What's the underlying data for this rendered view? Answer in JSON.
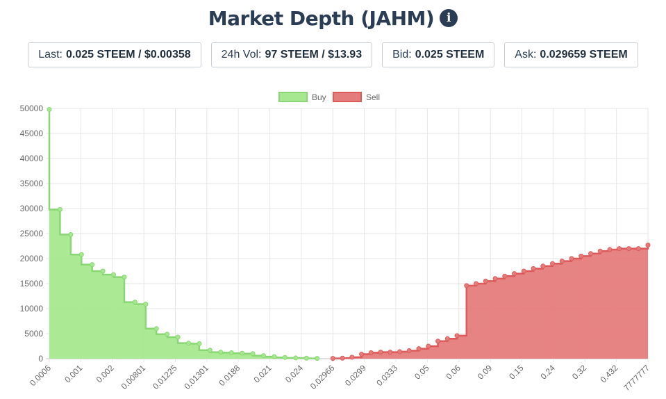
{
  "header": {
    "title": "Market Depth (JAHM)",
    "info_icon": "info-circle-icon"
  },
  "stats": [
    {
      "label": "Last:",
      "value": "0.025 STEEM / $0.00358"
    },
    {
      "label": "24h Vol:",
      "value": "97 STEEM / $13.93"
    },
    {
      "label": "Bid:",
      "value": "0.025 STEEM"
    },
    {
      "label": "Ask:",
      "value": "0.029659 STEEM"
    }
  ],
  "chart_data": {
    "type": "area",
    "title": "",
    "xlabel": "",
    "ylabel": "",
    "ylim": [
      0,
      50000
    ],
    "y_ticks": [
      0,
      5000,
      10000,
      15000,
      20000,
      25000,
      30000,
      35000,
      40000,
      45000,
      50000
    ],
    "x_tick_labels": [
      "0.0006",
      "0.001",
      "0.002",
      "0.00801",
      "0.01225",
      "0.01301",
      "0.0188",
      "0.021",
      "0.024",
      "0.02966",
      "0.0299",
      "0.0333",
      "0.05",
      "0.06",
      "0.09",
      "0.15",
      "0.24",
      "0.32",
      "0.432",
      "7777777"
    ],
    "grid": true,
    "legend_position": "top",
    "series": [
      {
        "name": "Buy",
        "color": "#a6e88f",
        "line_color": "#8ad675",
        "values": [
          49800,
          29800,
          24800,
          20800,
          18800,
          17500,
          16800,
          16300,
          11300,
          10900,
          6000,
          4900,
          4300,
          3100,
          3000,
          1700,
          1300,
          1200,
          1100,
          1000,
          600,
          400,
          250,
          150,
          100,
          50
        ]
      },
      {
        "name": "Sell",
        "color": "#e57c7c",
        "line_color": "#dc5a5a",
        "values": [
          50,
          100,
          300,
          900,
          1200,
          1300,
          1300,
          1400,
          1600,
          2000,
          2500,
          3500,
          4000,
          4600,
          14600,
          15000,
          15500,
          16000,
          16500,
          17000,
          17500,
          18000,
          18500,
          19000,
          19500,
          20000,
          20500,
          21000,
          21500,
          21800,
          22000,
          22000,
          22000,
          22700
        ]
      }
    ]
  }
}
